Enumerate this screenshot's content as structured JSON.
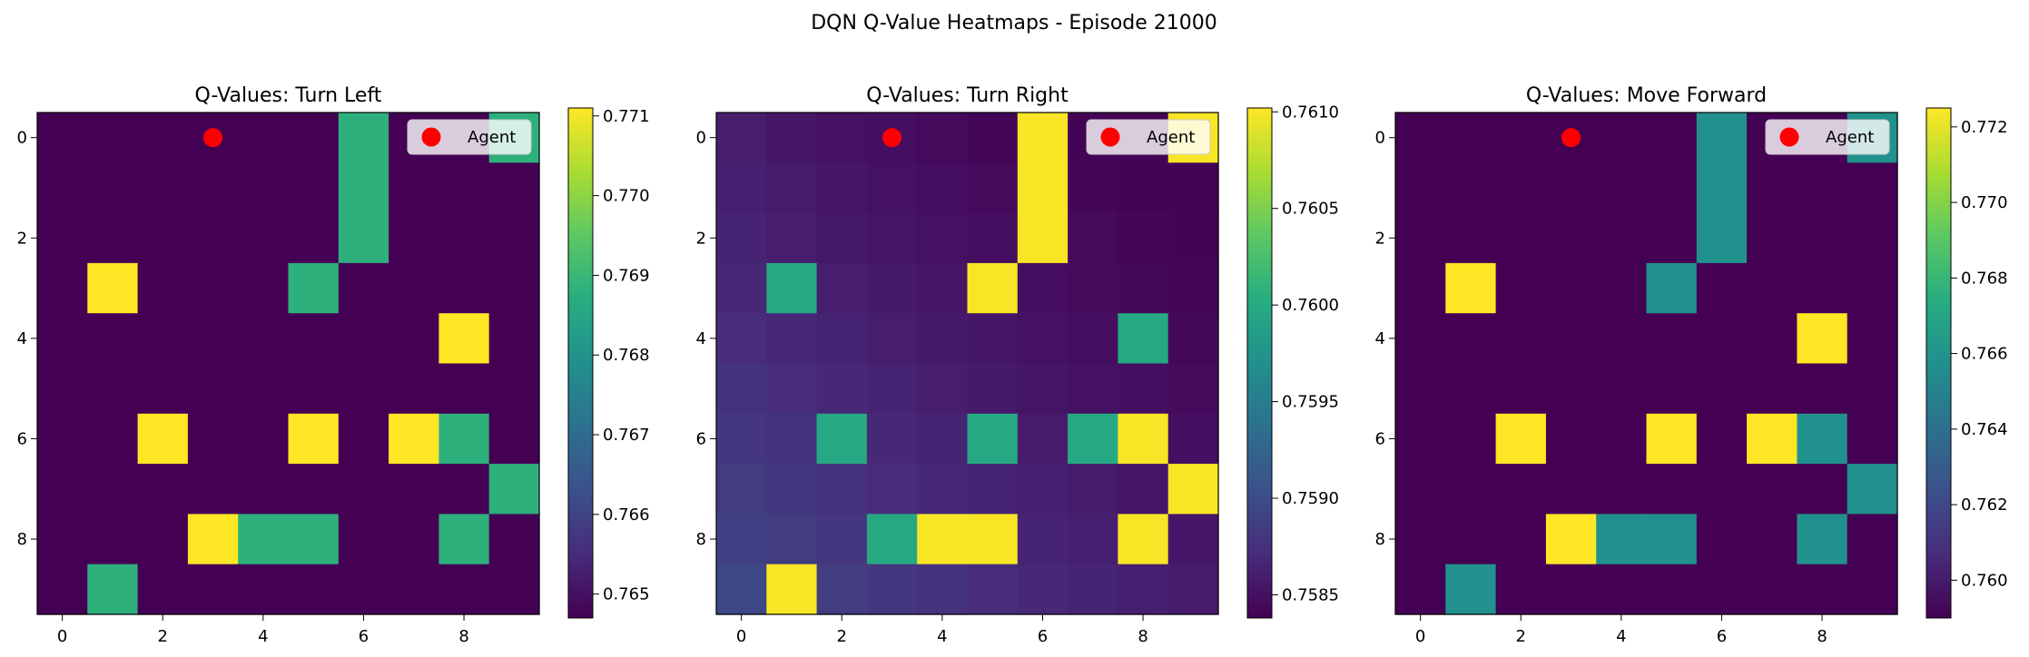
{
  "figure": {
    "title": "DQN Q-Value Heatmaps - Episode 21000"
  },
  "legend_label": "Agent",
  "colors": {
    "agent": "#ff0000",
    "axis": "#000000"
  },
  "chart_data": [
    {
      "type": "heatmap",
      "title": "Q-Values: Turn Left",
      "xticks": [
        0,
        2,
        4,
        6,
        8
      ],
      "yticks": [
        0,
        2,
        4,
        6,
        8
      ],
      "colorbar": {
        "min": 0.7647,
        "max": 0.7711,
        "ticks": [
          "0.765",
          "0.766",
          "0.767",
          "0.768",
          "0.769",
          "0.770",
          "0.771"
        ]
      },
      "legend": "upper right",
      "agent": {
        "x": 3,
        "y": 0
      },
      "values": [
        [
          0.7647,
          0.7647,
          0.7647,
          0.7647,
          0.7647,
          0.7647,
          0.7688,
          0.7647,
          0.7647,
          0.7688
        ],
        [
          0.7647,
          0.7647,
          0.7647,
          0.7647,
          0.7647,
          0.7647,
          0.7688,
          0.7647,
          0.7647,
          0.7647
        ],
        [
          0.7647,
          0.7647,
          0.7647,
          0.7647,
          0.7647,
          0.7647,
          0.7688,
          0.7647,
          0.7647,
          0.7647
        ],
        [
          0.7647,
          0.7711,
          0.7647,
          0.7647,
          0.7647,
          0.7688,
          0.7647,
          0.7647,
          0.7647,
          0.7647
        ],
        [
          0.7647,
          0.7647,
          0.7647,
          0.7647,
          0.7647,
          0.7647,
          0.7647,
          0.7647,
          0.7711,
          0.7647
        ],
        [
          0.7647,
          0.7647,
          0.7647,
          0.7647,
          0.7647,
          0.7647,
          0.7647,
          0.7647,
          0.7647,
          0.7647
        ],
        [
          0.7647,
          0.7647,
          0.7711,
          0.7647,
          0.7647,
          0.7711,
          0.7647,
          0.7711,
          0.7688,
          0.7647
        ],
        [
          0.7647,
          0.7647,
          0.7647,
          0.7647,
          0.7647,
          0.7647,
          0.7647,
          0.7647,
          0.7647,
          0.7688
        ],
        [
          0.7647,
          0.7647,
          0.7647,
          0.7711,
          0.7688,
          0.7688,
          0.7647,
          0.7647,
          0.7688,
          0.7647
        ],
        [
          0.7647,
          0.7688,
          0.7647,
          0.7647,
          0.7647,
          0.7647,
          0.7647,
          0.7647,
          0.7647,
          0.7647
        ]
      ]
    },
    {
      "type": "heatmap",
      "title": "Q-Values: Turn Right",
      "xticks": [
        0,
        2,
        4,
        6,
        8
      ],
      "yticks": [
        0,
        2,
        4,
        6,
        8
      ],
      "colorbar": {
        "min": 0.75838,
        "max": 0.76102,
        "ticks": [
          "0.7585",
          "0.7590",
          "0.7595",
          "0.7600",
          "0.7605",
          "0.7610"
        ]
      },
      "legend": "upper right",
      "agent": {
        "x": 3,
        "y": 0
      },
      "values": [
        [
          0.7586,
          0.75855,
          0.7585,
          0.75848,
          0.75845,
          0.75842,
          0.761,
          0.7584,
          0.7584,
          0.761
        ],
        [
          0.75862,
          0.75858,
          0.75854,
          0.7585,
          0.75848,
          0.75845,
          0.761,
          0.75842,
          0.7584,
          0.7584
        ],
        [
          0.75865,
          0.7586,
          0.75856,
          0.75853,
          0.7585,
          0.75848,
          0.761,
          0.75845,
          0.75842,
          0.7584
        ],
        [
          0.75868,
          0.75998,
          0.7586,
          0.75857,
          0.75854,
          0.761,
          0.75848,
          0.75846,
          0.75844,
          0.75842
        ],
        [
          0.75872,
          0.75868,
          0.75864,
          0.7586,
          0.75857,
          0.75853,
          0.7585,
          0.75848,
          0.75998,
          0.75843
        ],
        [
          0.75876,
          0.75872,
          0.75868,
          0.75865,
          0.7586,
          0.75857,
          0.75854,
          0.75851,
          0.75848,
          0.75845
        ],
        [
          0.7588,
          0.75876,
          0.75998,
          0.75868,
          0.75865,
          0.75998,
          0.75858,
          0.75998,
          0.761,
          0.75848
        ],
        [
          0.75885,
          0.7588,
          0.75876,
          0.75872,
          0.75868,
          0.75865,
          0.75862,
          0.75858,
          0.75855,
          0.761
        ],
        [
          0.7589,
          0.75885,
          0.7588,
          0.75998,
          0.761,
          0.761,
          0.75865,
          0.75862,
          0.761,
          0.75855
        ],
        [
          0.75895,
          0.761,
          0.75885,
          0.7588,
          0.75876,
          0.75872,
          0.75868,
          0.75865,
          0.75862,
          0.75858
        ]
      ]
    },
    {
      "type": "heatmap",
      "title": "Q-Values: Move Forward",
      "xticks": [
        0,
        2,
        4,
        6,
        8
      ],
      "yticks": [
        0,
        2,
        4,
        6,
        8
      ],
      "colorbar": {
        "min": 0.759,
        "max": 0.7725,
        "ticks": [
          "0.760",
          "0.762",
          "0.764",
          "0.766",
          "0.768",
          "0.770",
          "0.772"
        ]
      },
      "legend": "upper right",
      "agent": {
        "x": 3,
        "y": 0
      },
      "values": [
        [
          0.759,
          0.759,
          0.759,
          0.759,
          0.759,
          0.759,
          0.7658,
          0.759,
          0.759,
          0.7658
        ],
        [
          0.759,
          0.759,
          0.759,
          0.759,
          0.759,
          0.759,
          0.7658,
          0.759,
          0.759,
          0.759
        ],
        [
          0.759,
          0.759,
          0.759,
          0.759,
          0.759,
          0.759,
          0.7658,
          0.759,
          0.759,
          0.759
        ],
        [
          0.759,
          0.7725,
          0.759,
          0.759,
          0.759,
          0.7658,
          0.759,
          0.759,
          0.759,
          0.759
        ],
        [
          0.759,
          0.759,
          0.759,
          0.759,
          0.759,
          0.759,
          0.759,
          0.759,
          0.7725,
          0.759
        ],
        [
          0.759,
          0.759,
          0.759,
          0.759,
          0.759,
          0.759,
          0.759,
          0.759,
          0.759,
          0.759
        ],
        [
          0.759,
          0.759,
          0.7725,
          0.759,
          0.759,
          0.7725,
          0.759,
          0.7725,
          0.7658,
          0.759
        ],
        [
          0.759,
          0.759,
          0.759,
          0.759,
          0.759,
          0.759,
          0.759,
          0.759,
          0.759,
          0.7658
        ],
        [
          0.759,
          0.759,
          0.759,
          0.7725,
          0.7658,
          0.7658,
          0.759,
          0.759,
          0.7658,
          0.759
        ],
        [
          0.759,
          0.7658,
          0.759,
          0.759,
          0.759,
          0.759,
          0.759,
          0.759,
          0.759,
          0.759
        ]
      ]
    }
  ]
}
